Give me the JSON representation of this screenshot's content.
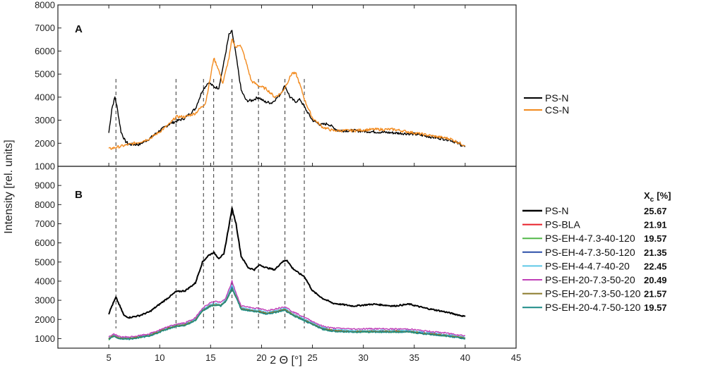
{
  "chart_data": [
    {
      "panel": "A",
      "type": "line",
      "ylim": [
        1000,
        8000
      ],
      "xlim": [
        0,
        45
      ],
      "y_ticks": [
        1000,
        2000,
        3000,
        4000,
        5000,
        6000,
        7000,
        8000
      ],
      "series": [
        {
          "name": "PS-N",
          "color": "#000000",
          "x": [
            5,
            5.3,
            5.6,
            5.8,
            6.2,
            6.6,
            7,
            8,
            9,
            10,
            11,
            11.6,
            12.5,
            13.5,
            14.2,
            14.8,
            15.3,
            15.8,
            16.3,
            16.8,
            17.1,
            17.5,
            18,
            18.5,
            19,
            19.7,
            20.3,
            21,
            21.8,
            22.3,
            22.8,
            23.3,
            23.8,
            24.3,
            25,
            25.8,
            26.5,
            27.5,
            29,
            31,
            33,
            35,
            37,
            38.5,
            40
          ],
          "y": [
            2450,
            3500,
            4000,
            3600,
            2500,
            2100,
            1950,
            1950,
            2200,
            2550,
            2850,
            2950,
            3100,
            3500,
            4300,
            4650,
            4450,
            4400,
            5500,
            6700,
            6850,
            5800,
            4300,
            3850,
            3850,
            4000,
            3800,
            3750,
            4100,
            4500,
            4000,
            3800,
            3900,
            3500,
            3000,
            2800,
            2850,
            2550,
            2550,
            2500,
            2450,
            2400,
            2250,
            2150,
            1850
          ]
        },
        {
          "name": "CS-N",
          "color": "#f28a1e",
          "x": [
            5,
            6,
            7,
            8,
            9,
            10,
            11,
            11.6,
            12.5,
            13.5,
            14.5,
            15,
            15.3,
            15.7,
            16.2,
            16.8,
            17.1,
            17.5,
            17.9,
            18.3,
            19,
            19.7,
            20.5,
            21.3,
            22,
            22.5,
            23,
            23.4,
            23.8,
            24.3,
            25,
            26,
            27,
            29,
            31,
            33,
            35,
            37,
            38.5,
            40
          ],
          "y": [
            1750,
            1850,
            1950,
            2050,
            2200,
            2500,
            2850,
            3150,
            3150,
            3300,
            3750,
            4900,
            5700,
            5300,
            4600,
            5700,
            6500,
            6150,
            6300,
            5800,
            4700,
            4500,
            4350,
            4000,
            4200,
            4600,
            5050,
            5000,
            4500,
            3800,
            3100,
            2700,
            2550,
            2550,
            2600,
            2600,
            2450,
            2300,
            2200,
            1900
          ]
        }
      ]
    },
    {
      "panel": "B",
      "type": "line",
      "ylim": [
        500,
        10000
      ],
      "xlim": [
        0,
        45
      ],
      "y_ticks": [
        1000,
        2000,
        3000,
        4000,
        5000,
        6000,
        7000,
        8000,
        9000
      ],
      "series": [
        {
          "name": "PS-N",
          "color": "#000000",
          "x": [
            5,
            5.3,
            5.7,
            6,
            6.5,
            7,
            8,
            9,
            10,
            11,
            11.6,
            12.5,
            13.5,
            14.2,
            14.8,
            15.3,
            15.8,
            16.3,
            16.8,
            17.1,
            17.5,
            18,
            18.7,
            19.3,
            19.8,
            20.5,
            21.3,
            22,
            22.5,
            23,
            23.7,
            24.2,
            25,
            26,
            27,
            29,
            31,
            33,
            34.5,
            36,
            38,
            40
          ],
          "y": [
            2300,
            2700,
            3150,
            2800,
            2200,
            2100,
            2200,
            2400,
            2800,
            3200,
            3450,
            3500,
            3900,
            5000,
            5350,
            5500,
            5200,
            5400,
            6900,
            7800,
            7000,
            5300,
            4700,
            4600,
            4850,
            4700,
            4600,
            5000,
            5100,
            4700,
            4400,
            4250,
            3500,
            3100,
            2850,
            2700,
            2800,
            2700,
            2800,
            2600,
            2400,
            2150
          ]
        },
        {
          "name": "PS-BLA",
          "color": "#e8202a",
          "x": [
            5,
            5.5,
            6,
            7,
            8,
            9,
            10,
            11,
            11.6,
            12.5,
            13.5,
            14.2,
            15,
            15.5,
            16,
            16.5,
            17.1,
            17.6,
            18,
            19,
            19.7,
            20.5,
            21.5,
            22.3,
            23,
            24,
            25,
            26,
            27,
            29,
            31,
            33,
            34.5,
            36,
            38,
            40
          ],
          "y": [
            1000,
            1150,
            1050,
            1000,
            1100,
            1200,
            1400,
            1600,
            1700,
            1750,
            2000,
            2500,
            2750,
            2800,
            2750,
            3000,
            3700,
            3100,
            2600,
            2500,
            2450,
            2350,
            2450,
            2550,
            2300,
            2050,
            1800,
            1550,
            1450,
            1400,
            1400,
            1400,
            1400,
            1300,
            1200,
            1050
          ]
        },
        {
          "name": "PS-EH-4-7.3-40-120",
          "color": "#52b848",
          "x": [
            5,
            5.5,
            6,
            7,
            8,
            9,
            10,
            11,
            11.6,
            12.5,
            13.5,
            14.2,
            15,
            15.5,
            16,
            16.5,
            17.1,
            17.6,
            18,
            19,
            19.7,
            20.5,
            21.5,
            22.3,
            23,
            24,
            25,
            26,
            27,
            29,
            31,
            33,
            34.5,
            36,
            38,
            40
          ],
          "y": [
            950,
            1150,
            1000,
            1000,
            1050,
            1150,
            1350,
            1550,
            1650,
            1700,
            1950,
            2450,
            2700,
            2750,
            2700,
            2950,
            3600,
            3050,
            2550,
            2450,
            2400,
            2300,
            2400,
            2500,
            2250,
            2000,
            1750,
            1500,
            1400,
            1350,
            1350,
            1350,
            1350,
            1250,
            1150,
            1000
          ]
        },
        {
          "name": "PS-EH-4-7.3-50-120",
          "color": "#2a4fa8",
          "x": [
            5,
            5.5,
            6,
            7,
            8,
            9,
            10,
            11,
            11.6,
            12.5,
            13.5,
            14.2,
            15,
            15.5,
            16,
            16.5,
            17.1,
            17.6,
            18,
            19,
            19.7,
            20.5,
            21.5,
            22.3,
            23,
            24,
            25,
            26,
            27,
            29,
            31,
            33,
            34.5,
            36,
            38,
            40
          ],
          "y": [
            1000,
            1180,
            1030,
            1000,
            1080,
            1180,
            1380,
            1580,
            1680,
            1730,
            1980,
            2480,
            2730,
            2780,
            2730,
            2980,
            3700,
            3080,
            2580,
            2480,
            2430,
            2330,
            2430,
            2530,
            2280,
            2030,
            1780,
            1530,
            1430,
            1380,
            1380,
            1380,
            1380,
            1280,
            1180,
            1030
          ]
        },
        {
          "name": "PS-EH-4-4.7-40-20",
          "color": "#5ec8e6",
          "x": [
            5,
            5.5,
            6,
            7,
            8,
            9,
            10,
            11,
            11.6,
            12.5,
            13.5,
            14.2,
            15,
            15.5,
            16,
            16.5,
            17.1,
            17.6,
            18,
            19,
            19.7,
            20.5,
            21.5,
            22.3,
            23,
            24,
            25,
            26,
            27,
            29,
            31,
            33,
            34.5,
            36,
            38,
            40
          ],
          "y": [
            1020,
            1200,
            1050,
            1020,
            1100,
            1200,
            1400,
            1600,
            1700,
            1760,
            2020,
            2520,
            2780,
            2830,
            2780,
            3030,
            3800,
            3120,
            2620,
            2520,
            2470,
            2370,
            2470,
            2570,
            2320,
            2070,
            1820,
            1570,
            1470,
            1420,
            1420,
            1420,
            1420,
            1320,
            1220,
            1070
          ]
        },
        {
          "name": "PS-EH-20-7.3-50-20",
          "color": "#c040b8",
          "x": [
            5,
            5.5,
            6,
            7,
            8,
            9,
            10,
            11,
            11.6,
            12.5,
            13.5,
            14.2,
            15,
            15.5,
            16,
            16.5,
            17.1,
            17.6,
            18,
            19,
            19.7,
            20.5,
            21.5,
            22.3,
            23,
            24,
            25,
            26,
            27,
            29,
            31,
            33,
            34.5,
            36,
            38,
            40
          ],
          "y": [
            1080,
            1250,
            1100,
            1080,
            1150,
            1250,
            1450,
            1650,
            1750,
            1820,
            2080,
            2600,
            2880,
            2950,
            2880,
            3120,
            4000,
            3220,
            2720,
            2620,
            2570,
            2470,
            2570,
            2680,
            2420,
            2170,
            1900,
            1650,
            1550,
            1500,
            1520,
            1500,
            1500,
            1400,
            1300,
            1150
          ]
        },
        {
          "name": "PS-EH-20-7.3-50-120",
          "color": "#8a7a2a",
          "x": [
            5,
            5.5,
            6,
            7,
            8,
            9,
            10,
            11,
            11.6,
            12.5,
            13.5,
            14.2,
            15,
            15.5,
            16,
            16.5,
            17.1,
            17.6,
            18,
            19,
            19.7,
            20.5,
            21.5,
            22.3,
            23,
            24,
            25,
            26,
            27,
            29,
            31,
            33,
            34.5,
            36,
            38,
            40
          ],
          "y": [
            1000,
            1170,
            1020,
            1000,
            1070,
            1170,
            1370,
            1570,
            1670,
            1720,
            1970,
            2470,
            2720,
            2770,
            2720,
            2970,
            3650,
            3070,
            2570,
            2470,
            2420,
            2320,
            2420,
            2520,
            2270,
            2020,
            1770,
            1520,
            1420,
            1370,
            1370,
            1370,
            1370,
            1270,
            1170,
            1020
          ]
        },
        {
          "name": "PS-EH-20-4.7-50-120",
          "color": "#1a8a86",
          "x": [
            5,
            5.5,
            6,
            7,
            8,
            9,
            10,
            11,
            11.6,
            12.5,
            13.5,
            14.2,
            15,
            15.5,
            16,
            16.5,
            17.1,
            17.6,
            18,
            19,
            19.7,
            20.5,
            21.5,
            22.3,
            23,
            24,
            25,
            26,
            27,
            29,
            31,
            33,
            34.5,
            36,
            38,
            40
          ],
          "y": [
            970,
            1130,
            990,
            970,
            1040,
            1140,
            1330,
            1530,
            1630,
            1690,
            1940,
            2440,
            2690,
            2740,
            2690,
            2930,
            3580,
            3030,
            2530,
            2430,
            2380,
            2280,
            2380,
            2480,
            2230,
            1980,
            1730,
            1480,
            1380,
            1340,
            1340,
            1340,
            1340,
            1240,
            1140,
            990
          ]
        }
      ]
    }
  ],
  "x_ticks": [
    5,
    10,
    15,
    20,
    25,
    30,
    35,
    40,
    45
  ],
  "dashed_lines_x": [
    5.7,
    11.6,
    14.3,
    15.3,
    17.1,
    19.7,
    22.3,
    24.2
  ],
  "y_axis_title": "Intensity [rel. units]",
  "x_axis_title": "2 Θ [°]",
  "panel_a_label": "A",
  "panel_b_label": "B",
  "legend_a": [
    "PS-N",
    "CS-N"
  ],
  "xc_header_main": "X",
  "xc_header_sub": "c",
  "xc_header_unit": "[%]",
  "legend_b": [
    {
      "name": "PS-N",
      "xc": "25.67"
    },
    {
      "name": "PS-BLA",
      "xc": "21.91"
    },
    {
      "name": "PS-EH-4-7.3-40-120",
      "xc": "19.57"
    },
    {
      "name": "PS-EH-4-7.3-50-120",
      "xc": "21.35"
    },
    {
      "name": "PS-EH-4-4.7-40-20",
      "xc": "22.45"
    },
    {
      "name": "PS-EH-20-7.3-50-20",
      "xc": "20.49"
    },
    {
      "name": "PS-EH-20-7.3-50-120",
      "xc": "21.57"
    },
    {
      "name": "PS-EH-20-4.7-50-120",
      "xc": "19.57"
    }
  ]
}
